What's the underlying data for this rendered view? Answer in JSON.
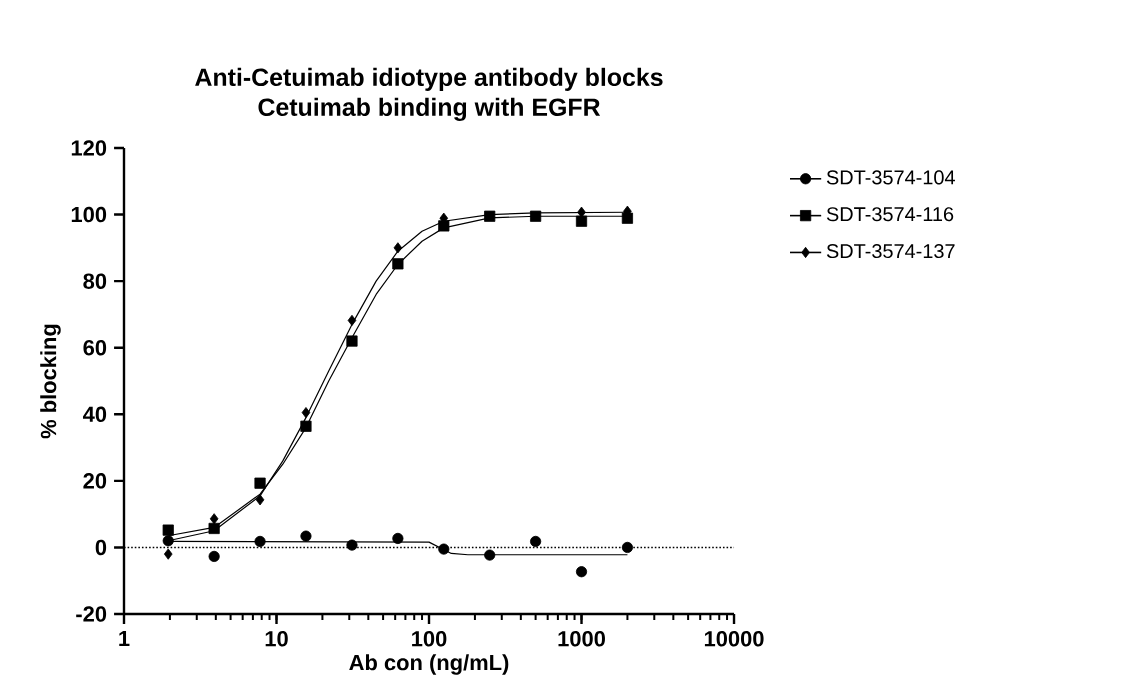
{
  "chart_data": {
    "type": "scatter",
    "title": "Anti-Cetuimab idiotype antibody blocks\nCetuimab binding with EGFR",
    "xlabel": "Ab con (ng/mL)",
    "ylabel": "% blocking",
    "log": "x",
    "xlim": [
      1,
      10000
    ],
    "xticks": [
      1,
      10,
      100,
      1000,
      10000
    ],
    "ylim": [
      -20,
      120
    ],
    "yticks": [
      -20,
      0,
      20,
      40,
      60,
      80,
      100,
      120
    ],
    "grid": false,
    "legend": "right",
    "ref_lines": [
      {
        "axis": "y",
        "value": 0,
        "line_style": "dotted",
        "color": "#000000"
      }
    ],
    "series": [
      {
        "name": "SDT-3574-104",
        "color": "#000000",
        "marker": "circle",
        "x": [
          1.95,
          3.9,
          7.8,
          15.6,
          31.25,
          62.5,
          125,
          250,
          500,
          1000,
          2000
        ],
        "values": [
          2,
          -2.7,
          1.8,
          3.4,
          0.7,
          2.7,
          -0.5,
          -2.3,
          1.8,
          -7.3,
          0
        ]
      },
      {
        "name": "SDT-3574-116",
        "color": "#000000",
        "marker": "square",
        "x": [
          1.95,
          3.9,
          7.8,
          15.6,
          31.25,
          62.5,
          125,
          250,
          500,
          1000,
          2000
        ],
        "values": [
          5.2,
          5.7,
          19.3,
          36.4,
          62,
          85.2,
          96.6,
          99.5,
          99.5,
          98,
          98.9
        ]
      },
      {
        "name": "SDT-3574-137",
        "color": "#000000",
        "marker": "diamond",
        "x": [
          1.95,
          3.9,
          7.8,
          15.6,
          31.25,
          62.5,
          125,
          250,
          500,
          1000,
          2000
        ],
        "values": [
          -2,
          8.6,
          14.3,
          40.5,
          68.2,
          90,
          98.9,
          null,
          null,
          100.7,
          101
        ]
      },
      {
        "type": "line",
        "color": "#000000",
        "marker": "none",
        "x": [
          1.95,
          100,
          140,
          180,
          2000
        ],
        "values": [
          1.8,
          1.6,
          -1.8,
          -2.2,
          -2.2
        ]
      },
      {
        "type": "line",
        "color": "#000000",
        "marker": "none",
        "x": [
          1.95,
          3.9,
          7.8,
          11,
          15.6,
          22,
          31.25,
          45,
          62.5,
          90,
          125,
          250,
          500,
          2000
        ],
        "values": [
          3.5,
          6,
          16,
          25,
          36,
          50,
          63,
          76,
          85,
          92,
          96,
          99,
          99.5,
          99.5
        ]
      },
      {
        "type": "line",
        "color": "#000000",
        "marker": "none",
        "x": [
          1.95,
          3.9,
          7.8,
          11,
          15.6,
          22,
          31.25,
          45,
          62.5,
          90,
          125,
          250,
          500,
          2000
        ],
        "values": [
          2,
          5,
          15.5,
          26,
          39,
          53,
          67,
          80,
          89,
          95,
          98,
          100,
          100.5,
          100.7
        ]
      }
    ]
  }
}
